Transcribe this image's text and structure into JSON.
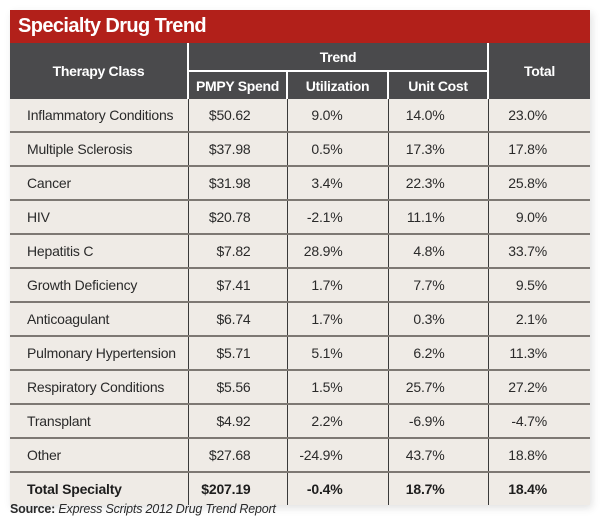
{
  "title": "Specialty Drug Trend",
  "colors": {
    "title_bar": "#b2201a",
    "header_bg": "#4a4a4c",
    "body_bg": "#efebe6"
  },
  "headers": {
    "therapy_class": "Therapy Class",
    "trend_group": "Trend",
    "pmpy_spend": "PMPY Spend",
    "utilization": "Utilization",
    "unit_cost": "Unit Cost",
    "total": "Total"
  },
  "rows": [
    {
      "therapy_class": "Inflammatory Conditions",
      "pmpy_spend": "$50.62",
      "utilization": "9.0%",
      "unit_cost": "14.0%",
      "total": "23.0%"
    },
    {
      "therapy_class": "Multiple Sclerosis",
      "pmpy_spend": "$37.98",
      "utilization": "0.5%",
      "unit_cost": "17.3%",
      "total": "17.8%"
    },
    {
      "therapy_class": "Cancer",
      "pmpy_spend": "$31.98",
      "utilization": "3.4%",
      "unit_cost": "22.3%",
      "total": "25.8%"
    },
    {
      "therapy_class": "HIV",
      "pmpy_spend": "$20.78",
      "utilization": "-2.1%",
      "unit_cost": "11.1%",
      "total": "9.0%"
    },
    {
      "therapy_class": "Hepatitis C",
      "pmpy_spend": "$7.82",
      "utilization": "28.9%",
      "unit_cost": "4.8%",
      "total": "33.7%"
    },
    {
      "therapy_class": "Growth Deficiency",
      "pmpy_spend": "$7.41",
      "utilization": "1.7%",
      "unit_cost": "7.7%",
      "total": "9.5%"
    },
    {
      "therapy_class": "Anticoagulant",
      "pmpy_spend": "$6.74",
      "utilization": "1.7%",
      "unit_cost": "0.3%",
      "total": "2.1%"
    },
    {
      "therapy_class": "Pulmonary Hypertension",
      "pmpy_spend": "$5.71",
      "utilization": "5.1%",
      "unit_cost": "6.2%",
      "total": "11.3%"
    },
    {
      "therapy_class": "Respiratory Conditions",
      "pmpy_spend": "$5.56",
      "utilization": "1.5%",
      "unit_cost": "25.7%",
      "total": "27.2%"
    },
    {
      "therapy_class": "Transplant",
      "pmpy_spend": "$4.92",
      "utilization": "2.2%",
      "unit_cost": "-6.9%",
      "total": "-4.7%"
    },
    {
      "therapy_class": "Other",
      "pmpy_spend": "$27.68",
      "utilization": "-24.9%",
      "unit_cost": "43.7%",
      "total": "18.8%"
    }
  ],
  "total_row": {
    "therapy_class": "Total Specialty",
    "pmpy_spend": "$207.19",
    "utilization": "-0.4%",
    "unit_cost": "18.7%",
    "total": "18.4%"
  },
  "source": {
    "label": "Source:",
    "text": "Express Scripts 2012 Drug Trend Report"
  }
}
